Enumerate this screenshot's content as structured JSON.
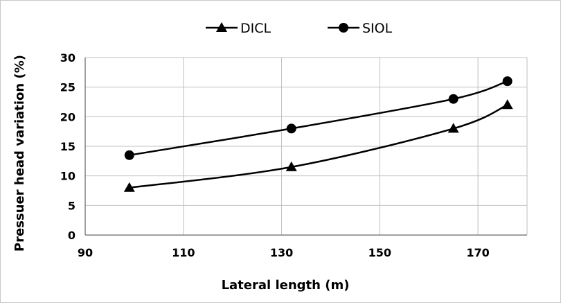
{
  "chart_data": {
    "type": "line",
    "xlabel": "Lateral length (m)",
    "ylabel": "Pressuer head variation (%)",
    "xlim": [
      90,
      180
    ],
    "ylim": [
      0,
      30
    ],
    "x_ticks": [
      90,
      110,
      130,
      150,
      170
    ],
    "y_ticks": [
      0,
      5,
      10,
      15,
      20,
      25,
      30
    ],
    "grid": true,
    "legend_position": "top-center",
    "series": [
      {
        "name": "DICL",
        "marker": "triangle",
        "color": "#000000",
        "x": [
          99,
          132,
          165,
          176
        ],
        "y": [
          8,
          11.5,
          18,
          22
        ]
      },
      {
        "name": "SIOL",
        "marker": "circle",
        "color": "#000000",
        "x": [
          99,
          132,
          165,
          176
        ],
        "y": [
          13.5,
          18,
          23,
          26
        ]
      }
    ]
  }
}
